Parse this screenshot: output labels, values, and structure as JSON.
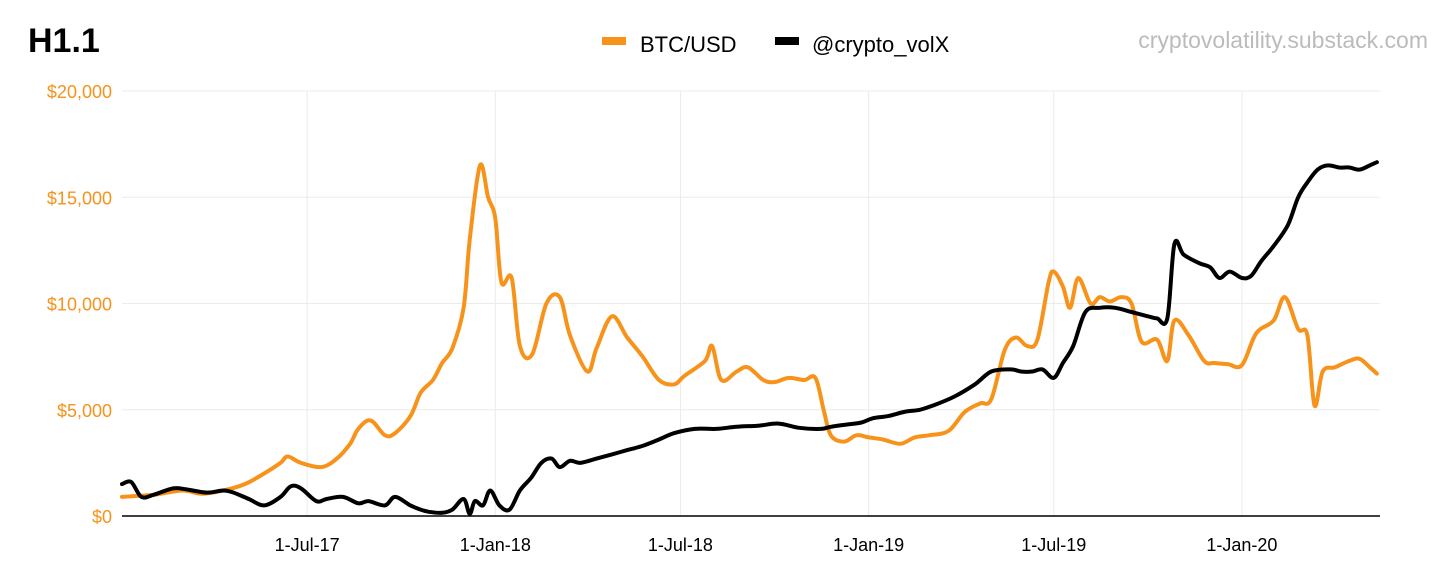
{
  "title": "H1.1",
  "watermark": "cryptovolatility.substack.com",
  "colors": {
    "btc": "#F7931A",
    "vol": "#000000",
    "axis_text": "#F7931A",
    "grid": "#ebebeb",
    "watermark": "#bbbbbb"
  },
  "chart_data": {
    "type": "line",
    "title": "H1.1",
    "legend": "top-center",
    "grid": true,
    "x_type": "date",
    "x_range": [
      "2017-01-01",
      "2020-05-15"
    ],
    "ylim": [
      0,
      20000
    ],
    "y_ticks": [
      0,
      5000,
      10000,
      15000,
      20000
    ],
    "y_tick_labels": [
      "$0",
      "$5,000",
      "$10,000",
      "$15,000",
      "$20,000"
    ],
    "x_ticks": [
      "2017-07-01",
      "2018-01-01",
      "2018-07-01",
      "2019-01-01",
      "2019-07-01",
      "2020-01-01"
    ],
    "x_tick_labels": [
      "1-Jul-17",
      "1-Jan-18",
      "1-Jul-18",
      "1-Jan-19",
      "1-Jul-19",
      "1-Jan-20"
    ],
    "series": [
      {
        "name": "BTC/USD",
        "color": "#F7931A",
        "x": [
          "2017-01-01",
          "2017-02-01",
          "2017-03-01",
          "2017-03-20",
          "2017-04-10",
          "2017-05-01",
          "2017-05-20",
          "2017-06-05",
          "2017-06-12",
          "2017-06-25",
          "2017-07-15",
          "2017-07-30",
          "2017-08-12",
          "2017-08-20",
          "2017-09-01",
          "2017-09-15",
          "2017-09-25",
          "2017-10-10",
          "2017-10-20",
          "2017-11-01",
          "2017-11-10",
          "2017-11-20",
          "2017-12-01",
          "2017-12-07",
          "2017-12-17",
          "2017-12-25",
          "2018-01-01",
          "2018-01-07",
          "2018-01-17",
          "2018-01-25",
          "2018-02-06",
          "2018-02-20",
          "2018-03-05",
          "2018-03-15",
          "2018-04-01",
          "2018-04-10",
          "2018-04-25",
          "2018-05-10",
          "2018-05-25",
          "2018-06-10",
          "2018-06-25",
          "2018-07-05",
          "2018-07-25",
          "2018-08-01",
          "2018-08-10",
          "2018-08-25",
          "2018-09-05",
          "2018-09-20",
          "2018-10-01",
          "2018-10-15",
          "2018-10-30",
          "2018-11-10",
          "2018-11-18",
          "2018-11-25",
          "2018-12-08",
          "2018-12-20",
          "2019-01-01",
          "2019-01-15",
          "2019-02-01",
          "2019-02-15",
          "2019-03-01",
          "2019-03-20",
          "2019-04-05",
          "2019-04-20",
          "2019-05-01",
          "2019-05-14",
          "2019-05-25",
          "2019-06-05",
          "2019-06-15",
          "2019-06-26",
          "2019-07-01",
          "2019-07-10",
          "2019-07-17",
          "2019-07-25",
          "2019-08-06",
          "2019-08-15",
          "2019-08-25",
          "2019-09-05",
          "2019-09-15",
          "2019-09-25",
          "2019-10-10",
          "2019-10-20",
          "2019-10-27",
          "2019-11-10",
          "2019-11-25",
          "2019-12-05",
          "2019-12-18",
          "2020-01-01",
          "2020-01-15",
          "2020-02-01",
          "2020-02-12",
          "2020-02-25",
          "2020-03-05",
          "2020-03-12",
          "2020-03-20",
          "2020-04-01",
          "2020-04-15",
          "2020-04-25",
          "2020-05-05",
          "2020-05-12"
        ],
        "values": [
          900,
          1000,
          1200,
          1050,
          1200,
          1500,
          2000,
          2500,
          2800,
          2500,
          2300,
          2700,
          3400,
          4100,
          4500,
          3800,
          3900,
          4700,
          5800,
          6400,
          7200,
          7900,
          9800,
          13000,
          16500,
          15000,
          14000,
          11000,
          11200,
          8000,
          7600,
          10000,
          10300,
          8500,
          6800,
          7900,
          9400,
          8400,
          7500,
          6400,
          6200,
          6600,
          7300,
          8000,
          6400,
          6800,
          7000,
          6400,
          6300,
          6500,
          6400,
          6500,
          5000,
          3800,
          3500,
          3800,
          3700,
          3600,
          3400,
          3700,
          3800,
          4000,
          4900,
          5300,
          5500,
          7800,
          8400,
          8000,
          8300,
          11000,
          11500,
          10800,
          9800,
          11200,
          10000,
          10300,
          10100,
          10300,
          10000,
          8200,
          8300,
          7300,
          9200,
          8500,
          7300,
          7200,
          7150,
          7100,
          8600,
          9200,
          10300,
          8800,
          8500,
          5200,
          6800,
          7000,
          7300,
          7400,
          7000,
          6700
        ]
      },
      {
        "name": "@crypto_volX",
        "color": "#000000",
        "x": [
          "2017-01-01",
          "2017-01-10",
          "2017-01-20",
          "2017-02-01",
          "2017-02-20",
          "2017-03-05",
          "2017-03-25",
          "2017-04-10",
          "2017-04-20",
          "2017-05-05",
          "2017-05-20",
          "2017-06-05",
          "2017-06-15",
          "2017-06-25",
          "2017-07-10",
          "2017-07-20",
          "2017-08-05",
          "2017-08-20",
          "2017-08-30",
          "2017-09-15",
          "2017-09-25",
          "2017-10-10",
          "2017-10-20",
          "2017-10-28",
          "2017-11-10",
          "2017-11-20",
          "2017-12-01",
          "2017-12-07",
          "2017-12-12",
          "2017-12-20",
          "2017-12-27",
          "2018-01-05",
          "2018-01-15",
          "2018-01-25",
          "2018-02-05",
          "2018-02-15",
          "2018-02-25",
          "2018-03-05",
          "2018-03-15",
          "2018-03-25",
          "2018-04-10",
          "2018-04-25",
          "2018-05-10",
          "2018-05-25",
          "2018-06-10",
          "2018-06-25",
          "2018-07-15",
          "2018-08-05",
          "2018-08-25",
          "2018-09-15",
          "2018-10-05",
          "2018-10-25",
          "2018-11-15",
          "2018-11-25",
          "2018-12-10",
          "2018-12-25",
          "2019-01-05",
          "2019-01-20",
          "2019-02-05",
          "2019-02-20",
          "2019-03-05",
          "2019-03-25",
          "2019-04-15",
          "2019-05-01",
          "2019-05-20",
          "2019-05-30",
          "2019-06-10",
          "2019-06-20",
          "2019-07-01",
          "2019-07-10",
          "2019-07-20",
          "2019-08-01",
          "2019-08-15",
          "2019-08-30",
          "2019-09-15",
          "2019-10-01",
          "2019-10-10",
          "2019-10-20",
          "2019-10-27",
          "2019-11-05",
          "2019-11-20",
          "2019-12-01",
          "2019-12-10",
          "2019-12-20",
          "2020-01-01",
          "2020-01-10",
          "2020-01-20",
          "2020-02-01",
          "2020-02-15",
          "2020-02-25",
          "2020-03-05",
          "2020-03-15",
          "2020-03-25",
          "2020-04-05",
          "2020-04-15",
          "2020-04-25",
          "2020-05-05",
          "2020-05-12"
        ],
        "values": [
          1500,
          1600,
          900,
          1000,
          1300,
          1250,
          1100,
          1200,
          1100,
          800,
          500,
          900,
          1400,
          1300,
          700,
          800,
          900,
          600,
          700,
          500,
          900,
          500,
          300,
          200,
          150,
          300,
          800,
          100,
          700,
          500,
          1200,
          500,
          300,
          1200,
          1800,
          2500,
          2700,
          2300,
          2600,
          2500,
          2700,
          2900,
          3100,
          3300,
          3600,
          3900,
          4100,
          4100,
          4200,
          4250,
          4350,
          4150,
          4100,
          4200,
          4300,
          4400,
          4600,
          4700,
          4900,
          5000,
          5200,
          5600,
          6200,
          6800,
          6900,
          6800,
          6800,
          6900,
          6500,
          7200,
          8000,
          9600,
          9800,
          9800,
          9600,
          9400,
          9300,
          9300,
          12800,
          12300,
          11900,
          11700,
          11200,
          11500,
          11200,
          11300,
          12000,
          12700,
          13700,
          15000,
          15700,
          16300,
          16500,
          16400,
          16400,
          16300,
          16500,
          16650
        ]
      }
    ]
  }
}
